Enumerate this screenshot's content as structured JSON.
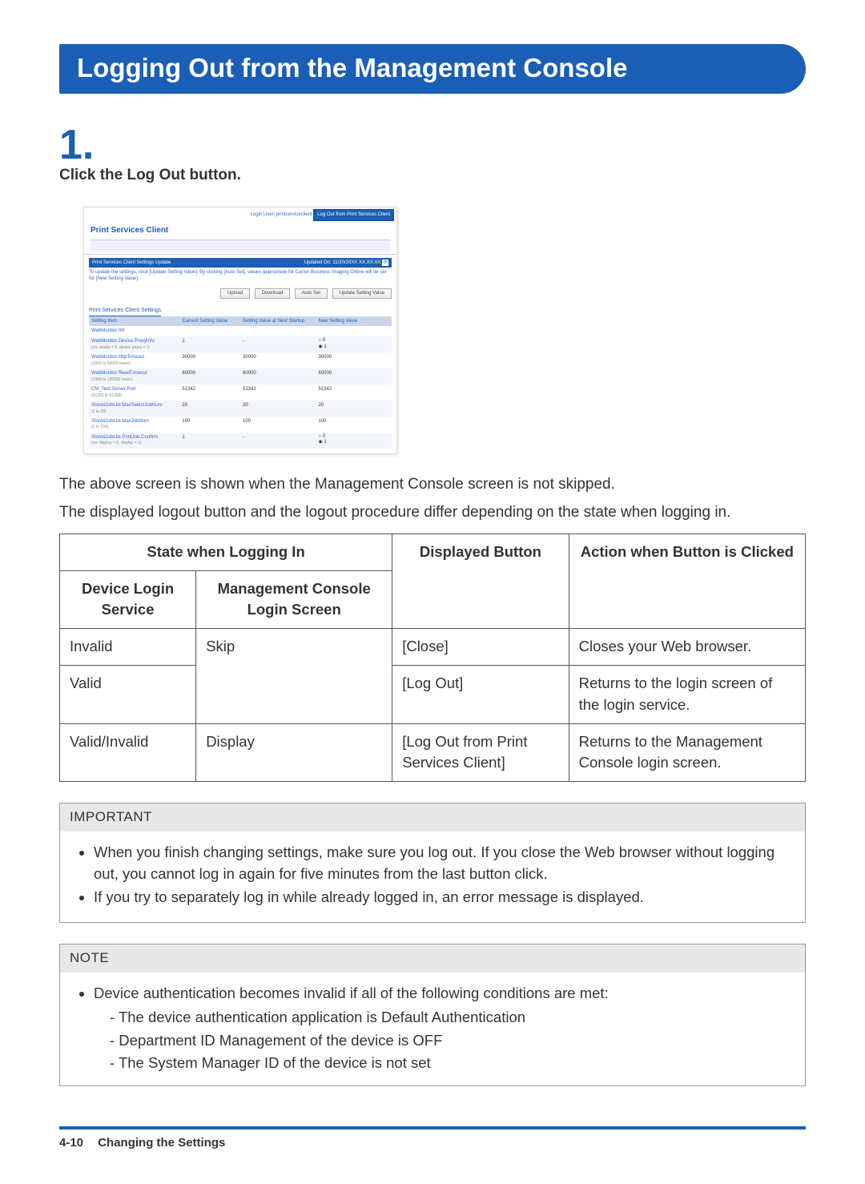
{
  "heading": "Logging Out from the Management Console",
  "step": {
    "num": "1.",
    "text": "Click the Log Out button."
  },
  "screenshot": {
    "login_user_label": "Login User: printserviceclient",
    "logout_button": "Log Out from Print Services Client",
    "title": "Print Services Client",
    "update_bar_left": "Print Services Client Settings Update",
    "update_bar_right": "Updated On: 11/20/20XX XX:XX:XX",
    "note": "To update the settings, click [Update Setting Value]. By clicking [Auto Set], values appropriate for Canon Business Imaging Online will be set for [New Setting Value].",
    "buttons": {
      "upload": "Upload",
      "download": "Download",
      "autoset": "Auto Set",
      "update": "Update Setting Value"
    },
    "settings_head": "Print Services Client Settings",
    "columns": {
      "c1": "Setting Item",
      "c2": "Current Setting Value",
      "c3": "Setting Value at Next Startup",
      "c4": "New Setting Value"
    },
    "rows": [
      {
        "name": "WebMonitor IW",
        "sub": "",
        "cur": "",
        "next": "",
        "new": "",
        "type": "blank"
      },
      {
        "name": "WebMonitor.Device.ProxyInfo",
        "sub": "(on: empty = 0, device proxy = 1)",
        "cur": "1",
        "next": "-",
        "new": "",
        "type": "radio01",
        "sel": 1
      },
      {
        "name": "WebMonitor.HttpTimeout",
        "sub": "(1000 to 60000 msec)",
        "cur": "30000",
        "next": "30000",
        "new": "30000",
        "type": "text"
      },
      {
        "name": "WebMonitor.ReadTimeout",
        "sub": "(1000 to 120000 msec)",
        "cur": "60000",
        "next": "60000",
        "new": "60000",
        "type": "text"
      },
      {
        "name": "CM_Test.Server.Port",
        "sub": "(51200 to 51399)",
        "cur": "51342",
        "next": "51342",
        "new": "51342",
        "type": "text"
      },
      {
        "name": "StoredJobList.MaxSelectJobNum",
        "sub": "(1 to 20)",
        "cur": "20",
        "next": "20",
        "new": "20",
        "type": "text"
      },
      {
        "name": "StoredJobList.MaxJobNum",
        "sub": "(1 to 100)",
        "cur": "100",
        "next": "100",
        "new": "100",
        "type": "text"
      },
      {
        "name": "StoredJobList.PrintJob.Confirm",
        "sub": "(on: display = 0, display = 1)",
        "cur": "1",
        "next": "-",
        "new": "",
        "type": "radio01",
        "sel": 1
      }
    ]
  },
  "para1": "The above screen is shown when the Management Console screen is not skipped.",
  "para2": "The displayed logout button and the logout procedure differ depending on the state when logging in.",
  "info_table": {
    "group_header": "State when Logging In",
    "headers": {
      "c1": "Device Login Service",
      "c2": "Management Console Login Screen",
      "c3": "Displayed Button",
      "c4": "Action when Button is Clicked"
    },
    "rows": [
      {
        "c1": "Invalid",
        "c2": "Skip",
        "c3": "[Close]",
        "c4": "Closes your Web browser.",
        "rowspan_c2": 2
      },
      {
        "c1": "Valid",
        "c2": null,
        "c3": "[Log Out]",
        "c4": "Returns to the login screen of the login service."
      },
      {
        "c1": "Valid/Invalid",
        "c2": "Display",
        "c3": "[Log Out from Print Services Client]",
        "c4": "Returns to the Management Console login screen."
      }
    ]
  },
  "important": {
    "title": "IMPORTANT",
    "items": [
      "When you finish changing settings, make sure you log out. If you close the Web browser without logging out, you cannot log in again for five minutes from the last button click.",
      "If you try to separately log in while already logged in, an error message is displayed."
    ]
  },
  "note": {
    "title": "NOTE",
    "lead": "Device authentication becomes invalid if all of the following conditions are met:",
    "subs": [
      "- The device authentication application is Default Authentication",
      "- Department ID Management of the device is OFF",
      "- The System Manager ID of the device is not set"
    ]
  },
  "footer": {
    "page": "4-10",
    "chapter": "Changing the Settings"
  },
  "colors": {
    "brand_blue": "#1a5fb5",
    "link_blue": "#36c",
    "th_bg": "#cbd5ea",
    "zebra": "#f3f5fb",
    "callout_hd": "#e8e8e8",
    "border": "#555555"
  }
}
